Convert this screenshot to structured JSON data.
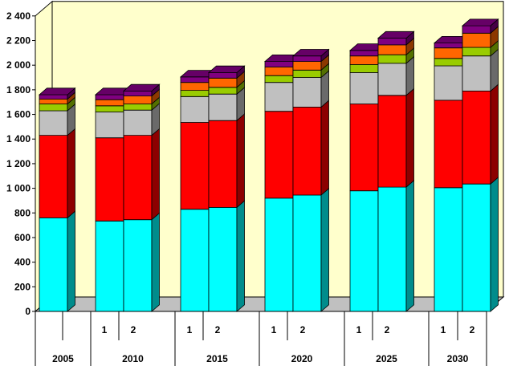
{
  "chart_data": {
    "type": "bar",
    "stacked": true,
    "three_d": true,
    "title": "",
    "xlabel": "",
    "ylabel": "",
    "ylim": [
      0,
      2400
    ],
    "y_tick_step": 200,
    "y_tick_labels": [
      "0",
      "200",
      "400",
      "600",
      "800",
      "1 000",
      "1 200",
      "1 400",
      "1 600",
      "1 800",
      "2 000",
      "2 200",
      "2 400"
    ],
    "grid": false,
    "legend": "none",
    "years": [
      "2005",
      "2010",
      "2015",
      "2020",
      "2025",
      "2030"
    ],
    "scenario_labels": [
      "1",
      "2"
    ],
    "categories": [
      "2005",
      "2010 1",
      "2010 2",
      "2015 1",
      "2015 2",
      "2020 1",
      "2020 2",
      "2025 1",
      "2025 2",
      "2030 1",
      "2030 2"
    ],
    "series": [
      {
        "color": "#00FFFF",
        "values": [
          760,
          735,
          745,
          830,
          845,
          920,
          945,
          980,
          1010,
          1005,
          1035
        ]
      },
      {
        "color": "#FF0000",
        "values": [
          670,
          675,
          685,
          705,
          705,
          705,
          715,
          705,
          745,
          710,
          755
        ]
      },
      {
        "color": "#C0C0C0",
        "values": [
          200,
          210,
          205,
          210,
          215,
          235,
          240,
          255,
          260,
          280,
          285
        ]
      },
      {
        "color": "#99CC00",
        "values": [
          55,
          50,
          50,
          50,
          55,
          55,
          60,
          65,
          70,
          60,
          70
        ]
      },
      {
        "color": "#FF6600",
        "values": [
          40,
          50,
          65,
          65,
          75,
          70,
          70,
          70,
          80,
          85,
          115
        ]
      },
      {
        "color": "#800080",
        "values": [
          35,
          40,
          40,
          45,
          45,
          45,
          45,
          45,
          55,
          40,
          60
        ]
      }
    ],
    "colors": {
      "wall": "#FFFFCC",
      "floor": "#C0C0C0"
    }
  }
}
